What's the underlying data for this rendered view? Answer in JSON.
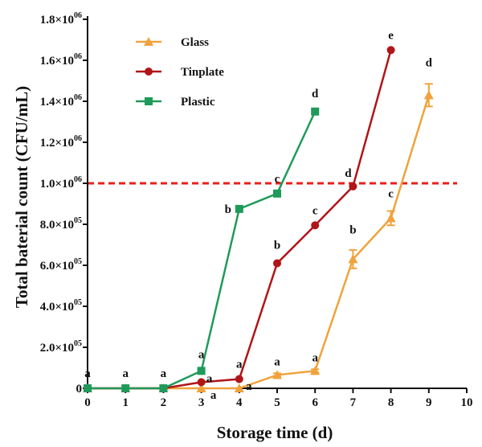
{
  "chart_data": {
    "type": "line",
    "title": "",
    "xlabel": "Storage time (d)",
    "ylabel": "Total baterial count (CFU/mL)",
    "xlim": [
      0,
      10
    ],
    "ylim": [
      0,
      1800000
    ],
    "x_ticks": [
      0,
      1,
      2,
      3,
      4,
      5,
      6,
      7,
      8,
      9,
      10
    ],
    "x_tick_labels": [
      "0",
      "1",
      "2",
      "3",
      "4",
      "5",
      "6",
      "7",
      "8",
      "9",
      "10"
    ],
    "y_ticks": [
      0,
      200000,
      400000,
      600000,
      800000,
      1000000,
      1200000,
      1400000,
      1600000,
      1800000
    ],
    "y_tick_labels": [
      {
        "base": "0",
        "exp": ""
      },
      {
        "base": "2.0×10",
        "exp": "05"
      },
      {
        "base": "4.0×10",
        "exp": "05"
      },
      {
        "base": "6.0×10",
        "exp": "05"
      },
      {
        "base": "8.0×10",
        "exp": "05"
      },
      {
        "base": "1.0×10",
        "exp": "06"
      },
      {
        "base": "1.2×10",
        "exp": "06"
      },
      {
        "base": "1.4×10",
        "exp": "06"
      },
      {
        "base": "1.6×10",
        "exp": "06"
      },
      {
        "base": "1.8×10",
        "exp": "06"
      }
    ],
    "threshold": {
      "y": 1000000,
      "color": "#e8201a",
      "style": "dashed"
    },
    "grid": false,
    "legend_position": "top-left",
    "series": [
      {
        "name": "Glass",
        "color": "#f0a23c",
        "marker": "triangle",
        "x": [
          0,
          1,
          2,
          3,
          4,
          5,
          6,
          7,
          8,
          9
        ],
        "y": [
          0,
          0,
          0,
          0,
          0,
          65000,
          85000,
          630000,
          830000,
          1430000
        ],
        "err": [
          0,
          0,
          0,
          0,
          0,
          8000,
          8000,
          45000,
          35000,
          55000
        ],
        "labels": [
          "a",
          "a",
          "a",
          "a",
          "a",
          "a",
          "a",
          "b",
          "c",
          "d"
        ]
      },
      {
        "name": "Tinplate",
        "color": "#b01518",
        "marker": "circle",
        "x": [
          0,
          1,
          2,
          3,
          4,
          5,
          6,
          7,
          8
        ],
        "y": [
          0,
          0,
          0,
          30000,
          45000,
          610000,
          795000,
          985000,
          1650000
        ],
        "err": [
          0,
          0,
          0,
          0,
          0,
          0,
          0,
          0,
          0
        ],
        "labels": [
          "",
          "",
          "",
          "a",
          "a",
          "b",
          "c",
          "d",
          "e"
        ]
      },
      {
        "name": "Plastic",
        "color": "#1f9a5a",
        "marker": "square",
        "x": [
          0,
          1,
          2,
          3,
          4,
          5,
          6
        ],
        "y": [
          0,
          0,
          0,
          85000,
          875000,
          950000,
          1350000
        ],
        "err": [
          0,
          0,
          0,
          0,
          0,
          0,
          0
        ],
        "labels": [
          "",
          "",
          "",
          "a",
          "b",
          "c",
          "d"
        ]
      }
    ]
  }
}
